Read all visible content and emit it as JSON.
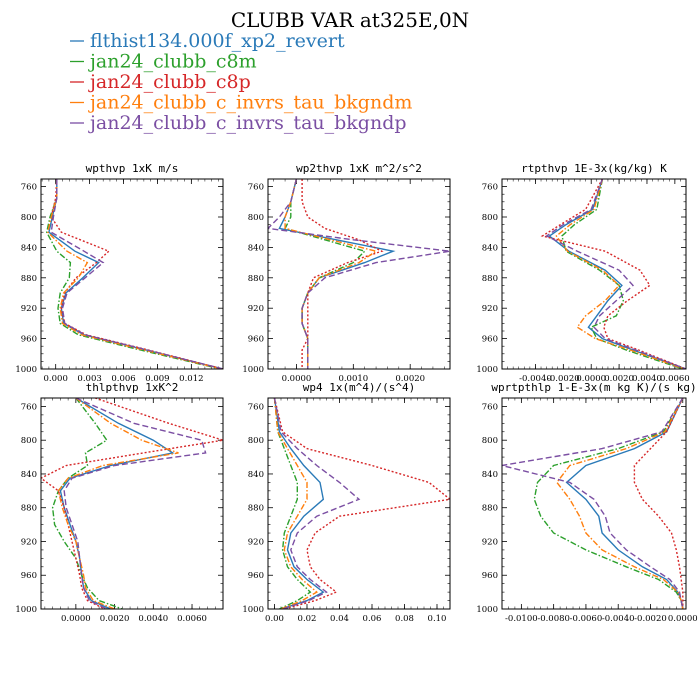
{
  "title": "CLUBB VAR at325E,0N",
  "series": [
    {
      "name": "flthist134.000f_xp2_revert",
      "color": "#2a7ab8",
      "dash": "solid"
    },
    {
      "name": "jan24_clubb_c8m",
      "color": "#2ca02c",
      "dash": "dashdot"
    },
    {
      "name": "jan24_clubb_c8p",
      "color": "#d62728",
      "dash": "dotted"
    },
    {
      "name": "jan24_clubb_c_invrs_tau_bkgndm",
      "color": "#ff7f0e",
      "dash": "dashdot"
    },
    {
      "name": "jan24_clubb_c_invrs_tau_bkgndp",
      "color": "#7b4fa3",
      "dash": "dashed"
    }
  ],
  "chart_data": [
    {
      "type": "line",
      "title": "wpthvp  1xK m/s",
      "y_label_values": [
        760,
        800,
        840,
        880,
        920,
        960,
        1000
      ],
      "ylim": [
        1000,
        750
      ],
      "xlim": [
        -0.0013,
        0.0148
      ],
      "x_ticks": [
        0.0,
        0.003,
        0.006,
        0.009,
        0.012
      ],
      "x_tick_labels": [
        "0.000",
        "0.003",
        "0.006",
        "0.009",
        "0.012"
      ],
      "y": [
        750,
        775,
        800,
        820,
        845,
        860,
        880,
        900,
        920,
        940,
        955,
        975,
        1000
      ],
      "series": [
        {
          "name": "flthist134.000f_xp2_revert",
          "x": [
            0.0001,
            0.0001,
            -0.0003,
            -0.0006,
            0.0017,
            0.0038,
            0.0024,
            0.0009,
            0.0005,
            0.0007,
            0.0025,
            0.008,
            0.0148
          ]
        },
        {
          "name": "jan24_clubb_c8m",
          "x": [
            0.0001,
            0.0001,
            -0.0005,
            -0.0008,
            0.0001,
            0.0013,
            0.0012,
            0.0004,
            0.0002,
            0.0004,
            0.002,
            0.0075,
            0.0146
          ]
        },
        {
          "name": "jan24_clubb_c8p",
          "x": [
            0.0001,
            0.0,
            -0.0004,
            0.0005,
            0.0047,
            0.0036,
            0.0018,
            0.0008,
            0.0005,
            0.0008,
            0.0027,
            0.0082,
            0.0148
          ]
        },
        {
          "name": "jan24_clubb_c_invrs_tau_bkgndm",
          "x": [
            0.0001,
            0.0001,
            -0.0004,
            -0.0007,
            0.001,
            0.0028,
            0.002,
            0.0007,
            0.0004,
            0.0006,
            0.0023,
            0.0078,
            0.0147
          ]
        },
        {
          "name": "jan24_clubb_c_invrs_tau_bkgndp",
          "x": [
            0.0001,
            0.0001,
            -0.0002,
            -0.0004,
            0.0025,
            0.0042,
            0.0026,
            0.001,
            0.0006,
            0.0008,
            0.0026,
            0.0081,
            0.0148
          ]
        }
      ]
    },
    {
      "type": "line",
      "title": "wp2thvp  1xK m^2/s^2",
      "y_label_values": [
        760,
        800,
        840,
        880,
        920,
        960,
        1000
      ],
      "ylim": [
        1000,
        750
      ],
      "xlim": [
        -0.0005,
        0.0027
      ],
      "x_ticks": [
        0.0,
        0.001,
        0.002
      ],
      "x_tick_labels": [
        "0.0000",
        "0.0010",
        "0.0020"
      ],
      "y": [
        750,
        780,
        800,
        815,
        830,
        845,
        860,
        880,
        900,
        920,
        940,
        960,
        975,
        1000
      ],
      "series": [
        {
          "name": "flthist134.000f_xp2_revert",
          "x": [
            0.0,
            -0.0001,
            -0.0002,
            -0.0003,
            0.0007,
            0.0017,
            0.0012,
            0.0004,
            0.0002,
            0.0001,
            0.0001,
            0.0002,
            0.0002,
            0.0002
          ]
        },
        {
          "name": "jan24_clubb_c8m",
          "x": [
            0.0,
            -0.0001,
            -0.0001,
            -0.0002,
            0.0005,
            0.0012,
            0.001,
            0.0004,
            0.0002,
            0.0001,
            0.0001,
            0.0002,
            0.0002,
            0.0002
          ]
        },
        {
          "name": "jan24_clubb_c8p",
          "x": [
            0.0001,
            0.0001,
            0.0002,
            0.0005,
            0.0011,
            0.0015,
            0.0009,
            0.0003,
            0.0002,
            0.0002,
            0.0002,
            0.0002,
            0.0001,
            0.0001
          ]
        },
        {
          "name": "jan24_clubb_c_invrs_tau_bkgndm",
          "x": [
            0.0,
            -0.0001,
            -0.0002,
            -0.0002,
            0.0006,
            0.0014,
            0.0011,
            0.0004,
            0.0002,
            0.0001,
            0.0001,
            0.0002,
            0.0002,
            0.0002
          ]
        },
        {
          "name": "jan24_clubb_c_invrs_tau_bkgndp",
          "x": [
            0.0,
            -0.0001,
            -0.0003,
            -0.0005,
            0.001,
            0.0027,
            0.0014,
            0.0005,
            0.0002,
            0.0001,
            0.0001,
            0.0002,
            0.0002,
            0.0002
          ]
        }
      ]
    },
    {
      "type": "line",
      "title": "rtpthvp  1E-3x(kg/kg) K",
      "y_label_values": [
        760,
        800,
        840,
        880,
        920,
        960,
        1000
      ],
      "ylim": [
        1000,
        750
      ],
      "xlim": [
        -0.0064,
        0.0068
      ],
      "x_ticks": [
        -0.004,
        -0.002,
        0.0,
        0.002,
        0.004,
        0.006
      ],
      "x_tick_labels": [
        "-0.0040",
        "-0.0020",
        "0.0000",
        "0.0020",
        "0.0040",
        "0.0060"
      ],
      "y": [
        750,
        790,
        810,
        825,
        845,
        870,
        890,
        910,
        930,
        945,
        960,
        975,
        1000
      ],
      "series": [
        {
          "name": "flthist134.000f_xp2_revert",
          "x": [
            0.0008,
            0.0001,
            -0.0018,
            -0.003,
            -0.0016,
            0.001,
            0.0022,
            0.0012,
            0.0004,
            -0.0002,
            0.0008,
            0.003,
            0.0068
          ]
        },
        {
          "name": "jan24_clubb_c8m",
          "x": [
            0.0008,
            0.0004,
            -0.0012,
            -0.0021,
            -0.0018,
            0.0006,
            0.002,
            0.0023,
            0.0018,
            0.0,
            0.0004,
            0.0025,
            0.0066
          ]
        },
        {
          "name": "jan24_clubb_c8p",
          "x": [
            0.0008,
            -0.0004,
            -0.0022,
            -0.0035,
            0.001,
            0.0035,
            0.0042,
            0.0026,
            0.0012,
            0.0009,
            0.0012,
            0.0034,
            0.0068
          ]
        },
        {
          "name": "jan24_clubb_c_invrs_tau_bkgndm",
          "x": [
            0.0008,
            0.0002,
            -0.0015,
            -0.0025,
            -0.0017,
            0.0008,
            0.002,
            0.001,
            -0.0004,
            -0.001,
            0.0003,
            0.0028,
            0.0067
          ]
        },
        {
          "name": "jan24_clubb_c_invrs_tau_bkgndp",
          "x": [
            0.0008,
            0.0,
            -0.002,
            -0.0032,
            -0.001,
            0.002,
            0.003,
            0.0018,
            0.0006,
            0.0002,
            0.001,
            0.0032,
            0.0068
          ]
        }
      ]
    },
    {
      "type": "line",
      "title": "thlpthvp  1xK^2",
      "y_label_values": [
        760,
        800,
        840,
        880,
        920,
        960,
        1000
      ],
      "ylim": [
        1000,
        750
      ],
      "xlim": [
        -0.0018,
        0.0076
      ],
      "x_ticks": [
        0.0,
        0.002,
        0.004,
        0.006
      ],
      "x_tick_labels": [
        "0.0000",
        "0.0020",
        "0.0040",
        "0.0060"
      ],
      "y": [
        750,
        780,
        800,
        815,
        830,
        845,
        860,
        880,
        900,
        920,
        940,
        960,
        975,
        990,
        1000
      ],
      "series": [
        {
          "name": "flthist134.000f_xp2_revert",
          "x": [
            0.0,
            0.0022,
            0.004,
            0.005,
            0.0018,
            -0.0003,
            -0.0008,
            -0.0006,
            -0.0003,
            0.0,
            0.0002,
            0.0003,
            0.0004,
            0.0008,
            0.0018
          ]
        },
        {
          "name": "jan24_clubb_c8m",
          "x": [
            0.0,
            0.001,
            0.0016,
            0.0005,
            0.0006,
            -0.0004,
            -0.0009,
            -0.0012,
            -0.0011,
            -0.0006,
            0.0,
            0.0003,
            0.0006,
            0.0012,
            0.0024
          ]
        },
        {
          "name": "jan24_clubb_c8p",
          "x": [
            0.001,
            0.0048,
            0.0076,
            0.0035,
            -0.0005,
            -0.0018,
            -0.0009,
            -0.0006,
            -0.0004,
            -0.0002,
            0.0,
            0.0002,
            0.0003,
            0.0006,
            0.0015
          ]
        },
        {
          "name": "jan24_clubb_c_invrs_tau_bkgndm",
          "x": [
            0.0,
            0.0018,
            0.0034,
            0.0053,
            0.0014,
            -0.0004,
            -0.0009,
            -0.0007,
            -0.0004,
            0.0,
            0.0002,
            0.0004,
            0.0005,
            0.0009,
            0.002
          ]
        },
        {
          "name": "jan24_clubb_c_invrs_tau_bkgndp",
          "x": [
            0.0,
            0.003,
            0.0065,
            0.0067,
            0.002,
            -0.0002,
            -0.0006,
            -0.0005,
            -0.0002,
            0.0001,
            0.0002,
            0.0003,
            0.0004,
            0.0007,
            0.0016
          ]
        }
      ]
    },
    {
      "type": "line",
      "title": "wp4  1x(m^4)/(s^4)",
      "y_label_values": [
        760,
        800,
        840,
        880,
        920,
        960,
        1000
      ],
      "ylim": [
        1000,
        750
      ],
      "xlim": [
        -0.004,
        0.108
      ],
      "x_ticks": [
        0.0,
        0.02,
        0.04,
        0.06,
        0.08,
        0.1
      ],
      "x_tick_labels": [
        "0.00",
        "0.02",
        "0.04",
        "0.06",
        "0.08",
        "0.10"
      ],
      "y": [
        750,
        790,
        810,
        830,
        850,
        870,
        890,
        910,
        930,
        950,
        965,
        980,
        990,
        1000
      ],
      "series": [
        {
          "name": "flthist134.000f_xp2_revert",
          "x": [
            0.0,
            0.003,
            0.01,
            0.018,
            0.028,
            0.03,
            0.018,
            0.01,
            0.008,
            0.012,
            0.02,
            0.03,
            0.02,
            0.004
          ]
        },
        {
          "name": "jan24_clubb_c8m",
          "x": [
            0.0,
            0.002,
            0.006,
            0.01,
            0.014,
            0.014,
            0.01,
            0.006,
            0.005,
            0.008,
            0.014,
            0.022,
            0.014,
            0.003
          ]
        },
        {
          "name": "jan24_clubb_c8p",
          "x": [
            0.0,
            0.005,
            0.02,
            0.06,
            0.095,
            0.108,
            0.04,
            0.025,
            0.02,
            0.022,
            0.028,
            0.038,
            0.025,
            0.006
          ]
        },
        {
          "name": "jan24_clubb_c_invrs_tau_bkgndm",
          "x": [
            0.0,
            0.002,
            0.008,
            0.014,
            0.02,
            0.02,
            0.014,
            0.008,
            0.006,
            0.01,
            0.017,
            0.026,
            0.017,
            0.004
          ]
        },
        {
          "name": "jan24_clubb_c_invrs_tau_bkgndp",
          "x": [
            0.0,
            0.004,
            0.014,
            0.026,
            0.04,
            0.052,
            0.026,
            0.014,
            0.01,
            0.014,
            0.022,
            0.032,
            0.021,
            0.005
          ]
        }
      ]
    },
    {
      "type": "line",
      "title": "wprtpthlp  1-E-3x(m kg K)/(s kg)",
      "y_label_values": [
        760,
        800,
        840,
        880,
        920,
        960,
        1000
      ],
      "ylim": [
        1000,
        750
      ],
      "xlim": [
        -0.0112,
        0.0002
      ],
      "x_ticks": [
        -0.01,
        -0.008,
        -0.006,
        -0.004,
        -0.002,
        0.0
      ],
      "x_tick_labels": [
        "-0.0100",
        "-0.0080",
        "-0.0060",
        "-0.0040",
        "-0.0020",
        "0.0000"
      ],
      "y": [
        750,
        790,
        810,
        830,
        850,
        870,
        890,
        910,
        930,
        950,
        965,
        980,
        990,
        1000
      ],
      "series": [
        {
          "name": "flthist134.000f_xp2_revert",
          "x": [
            0.0,
            -0.001,
            -0.003,
            -0.006,
            -0.0072,
            -0.006,
            -0.0052,
            -0.005,
            -0.004,
            -0.0025,
            -0.001,
            -0.0003,
            -0.0001,
            0.0
          ]
        },
        {
          "name": "jan24_clubb_c8m",
          "x": [
            0.0,
            -0.0012,
            -0.004,
            -0.008,
            -0.009,
            -0.0092,
            -0.0088,
            -0.008,
            -0.006,
            -0.0035,
            -0.0015,
            -0.0004,
            -0.0001,
            0.0
          ]
        },
        {
          "name": "jan24_clubb_c8p",
          "x": [
            0.0,
            -0.001,
            -0.002,
            -0.003,
            -0.003,
            -0.0025,
            -0.0015,
            -0.0007,
            -0.0004,
            -0.0002,
            -0.0001,
            0.0,
            0.0,
            0.0
          ]
        },
        {
          "name": "jan24_clubb_c_invrs_tau_bkgndm",
          "x": [
            0.0,
            -0.0011,
            -0.0035,
            -0.007,
            -0.0078,
            -0.007,
            -0.0064,
            -0.006,
            -0.005,
            -0.003,
            -0.0012,
            -0.0003,
            -0.0001,
            0.0
          ]
        },
        {
          "name": "jan24_clubb_c_invrs_tau_bkgndp",
          "x": [
            0.0,
            -0.0013,
            -0.005,
            -0.0112,
            -0.007,
            -0.0055,
            -0.0048,
            -0.0045,
            -0.0035,
            -0.002,
            -0.0008,
            -0.0002,
            -0.0001,
            0.0
          ]
        }
      ]
    }
  ]
}
